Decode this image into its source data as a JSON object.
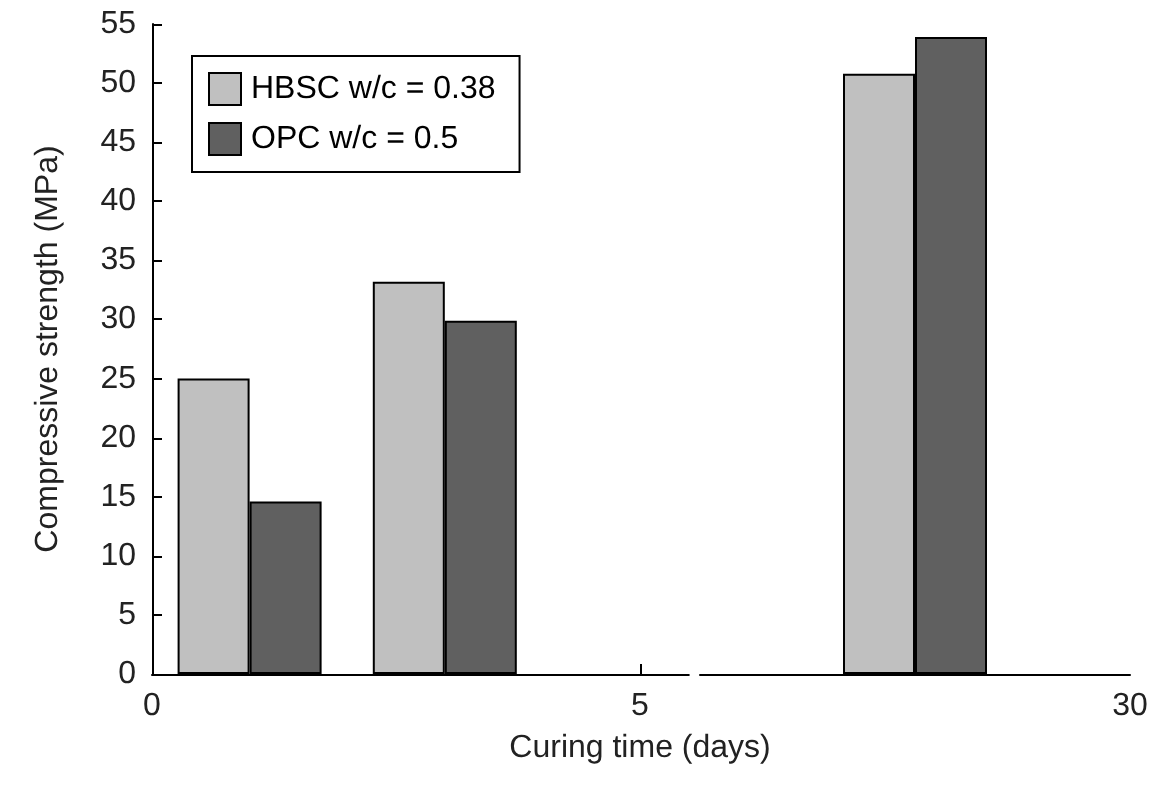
{
  "chart_data": [
    {
      "type": "bar",
      "xlabel": "Curing time (days)",
      "ylabel": "Compressive strength (MPa)",
      "x": [
        1,
        3
      ],
      "xlim": [
        0,
        5.5
      ],
      "xticks": [
        0,
        5
      ],
      "ylim": [
        0,
        55
      ],
      "yticks": [
        0,
        5,
        10,
        15,
        20,
        25,
        30,
        35,
        40,
        45,
        50,
        55
      ],
      "series": [
        {
          "name": "HBSC w/c = 0.38",
          "color": "#c0c0c0",
          "values": [
            25,
            33.2
          ]
        },
        {
          "name": "OPC w/c = 0.5",
          "color": "#606060",
          "values": [
            14.6,
            29.9
          ]
        }
      ],
      "legend": "top left",
      "grid": false
    },
    {
      "type": "bar",
      "categories": [
        null
      ],
      "ylim": [
        0,
        55
      ],
      "annotations": [
        "30"
      ],
      "series": [
        {
          "color": "#c0c0c0",
          "values": [
            50.8
          ]
        },
        {
          "color": "#606060",
          "values": [
            53.9
          ]
        }
      ],
      "grid": false
    }
  ]
}
